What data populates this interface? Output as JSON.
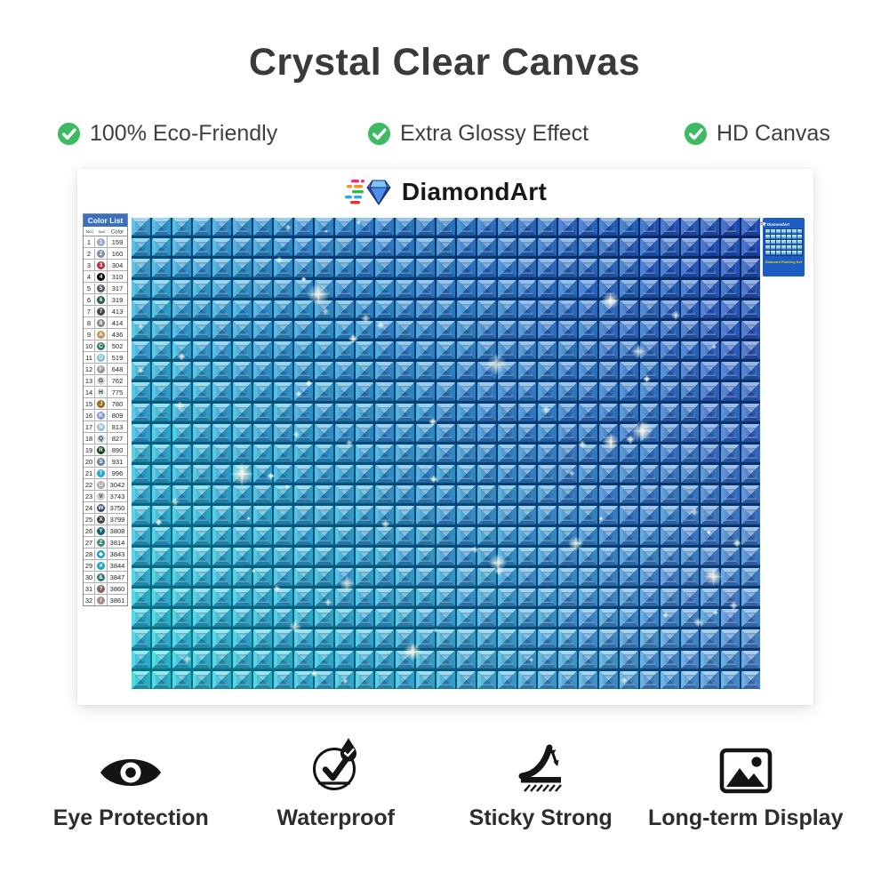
{
  "title": "Crystal Clear Canvas",
  "features_top": [
    {
      "label": "100% Eco-Friendly"
    },
    {
      "label": "Extra Glossy Effect"
    },
    {
      "label": "HD Canvas"
    }
  ],
  "brand": {
    "name": "DiamondArt"
  },
  "color_list": {
    "title": "Color List",
    "columns": {
      "no": "No.",
      "symbol": "Symbol",
      "color": "Color"
    },
    "rows": [
      {
        "no": "1",
        "symbol": "1",
        "code": "159",
        "swatch": "#9aa6cc",
        "dark_text": false
      },
      {
        "no": "2",
        "symbol": "2",
        "code": "160",
        "swatch": "#7d88b4",
        "dark_text": false
      },
      {
        "no": "3",
        "symbol": "3",
        "code": "304",
        "swatch": "#bf2b3d",
        "dark_text": false
      },
      {
        "no": "4",
        "symbol": "4",
        "code": "310",
        "swatch": "#000000",
        "dark_text": false
      },
      {
        "no": "5",
        "symbol": "5",
        "code": "317",
        "swatch": "#565660",
        "dark_text": false
      },
      {
        "no": "6",
        "symbol": "6",
        "code": "319",
        "swatch": "#235c3f",
        "dark_text": false
      },
      {
        "no": "7",
        "symbol": "7",
        "code": "413",
        "swatch": "#44444c",
        "dark_text": false
      },
      {
        "no": "8",
        "symbol": "8",
        "code": "414",
        "swatch": "#83838d",
        "dark_text": false
      },
      {
        "no": "9",
        "symbol": "A",
        "code": "436",
        "swatch": "#c69253",
        "dark_text": false
      },
      {
        "no": "10",
        "symbol": "C",
        "code": "502",
        "swatch": "#377a68",
        "dark_text": false
      },
      {
        "no": "11",
        "symbol": "D",
        "code": "519",
        "swatch": "#7cbdd8",
        "dark_text": false
      },
      {
        "no": "12",
        "symbol": "F",
        "code": "648",
        "swatch": "#9b9b93",
        "dark_text": false
      },
      {
        "no": "13",
        "symbol": "G",
        "code": "762",
        "swatch": "#d4d4d6",
        "dark_text": true
      },
      {
        "no": "14",
        "symbol": "H",
        "code": "775",
        "swatch": "#d8eaf4",
        "dark_text": true
      },
      {
        "no": "15",
        "symbol": "J",
        "code": "780",
        "swatch": "#9c6716",
        "dark_text": false
      },
      {
        "no": "16",
        "symbol": "K",
        "code": "809",
        "swatch": "#7a97d8",
        "dark_text": false
      },
      {
        "no": "17",
        "symbol": "N",
        "code": "813",
        "swatch": "#95bede",
        "dark_text": false
      },
      {
        "no": "18",
        "symbol": "Q",
        "code": "827",
        "swatch": "#bcd9ec",
        "dark_text": true
      },
      {
        "no": "19",
        "symbol": "R",
        "code": "890",
        "swatch": "#15401f",
        "dark_text": false
      },
      {
        "no": "20",
        "symbol": "S",
        "code": "931",
        "swatch": "#61809e",
        "dark_text": false
      },
      {
        "no": "21",
        "symbol": "T",
        "code": "996",
        "swatch": "#27a8da",
        "dark_text": false
      },
      {
        "no": "22",
        "symbol": "U",
        "code": "3042",
        "swatch": "#b39fb4",
        "dark_text": false
      },
      {
        "no": "23",
        "symbol": "V",
        "code": "3743",
        "swatch": "#d3c9d6",
        "dark_text": true
      },
      {
        "no": "24",
        "symbol": "W",
        "code": "3750",
        "swatch": "#2a4a68",
        "dark_text": false
      },
      {
        "no": "25",
        "symbol": "X",
        "code": "3799",
        "swatch": "#3c4044",
        "dark_text": false
      },
      {
        "no": "26",
        "symbol": "Y",
        "code": "3808",
        "swatch": "#0f5f6e",
        "dark_text": false
      },
      {
        "no": "27",
        "symbol": "Z",
        "code": "3814",
        "swatch": "#3b8a79",
        "dark_text": false
      },
      {
        "no": "28",
        "symbol": "◆",
        "code": "3843",
        "swatch": "#1398d6",
        "dark_text": false
      },
      {
        "no": "29",
        "symbol": "#",
        "code": "3844",
        "swatch": "#1fa7c0",
        "dark_text": false
      },
      {
        "no": "30",
        "symbol": "&",
        "code": "3847",
        "swatch": "#2d7a70",
        "dark_text": false
      },
      {
        "no": "31",
        "symbol": "?",
        "code": "3860",
        "swatch": "#84625c",
        "dark_text": false
      },
      {
        "no": "32",
        "symbol": "/",
        "code": "3861",
        "swatch": "#ab8b84",
        "dark_text": false
      }
    ]
  },
  "mini_label": {
    "brand": "DiamondArt",
    "caption": "Diamond Painting Set"
  },
  "features_bottom": [
    {
      "label": "Eye Protection"
    },
    {
      "label": "Waterproof"
    },
    {
      "label": "Sticky Strong"
    },
    {
      "label": "Long-term Display"
    }
  ],
  "colors": {
    "check_green": "#3dba62",
    "title_text": "#3a3a3a",
    "canvas_corner_top_left": "#38b6e2",
    "canvas_corner_top_right": "#2257c5",
    "canvas_corner_bottom_left": "#2adce2",
    "canvas_corner_bottom_right": "#55a0dd",
    "color_list_header_bg": "#3a70c4",
    "mini_label_bg": "#1c5dc2",
    "mini_label_caption": "#f0cf2a"
  }
}
